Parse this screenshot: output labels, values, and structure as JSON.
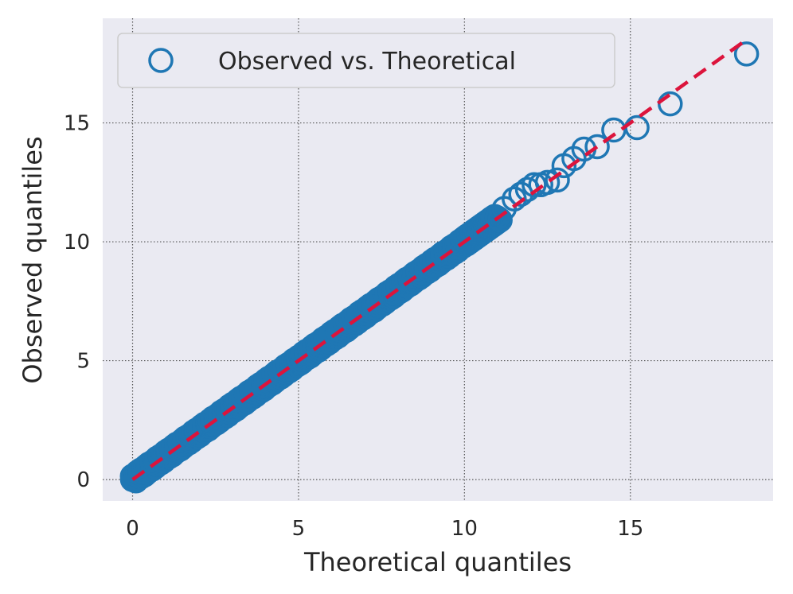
{
  "chart_data": {
    "type": "scatter",
    "xlabel": "Theoretical quantiles",
    "ylabel": "Observed quantiles",
    "xlim": [
      -0.9,
      19.3
    ],
    "ylim": [
      -0.9,
      19.4
    ],
    "xticks": [
      0,
      5,
      10,
      15
    ],
    "yticks": [
      0,
      5,
      10,
      15
    ],
    "grid": true,
    "grid_style": "dotted",
    "background_color": "#eaeaf2",
    "legend": {
      "location": "top-left",
      "entries": [
        "Observed vs. Theoretical"
      ]
    },
    "series": [
      {
        "name": "Observed vs. Theoretical",
        "kind": "scatter",
        "marker": "hollow-circle",
        "color": "#1f77b4",
        "dense_segments": [
          {
            "from": [
              0,
              0
            ],
            "to": [
              5,
              5
            ]
          },
          {
            "from": [
              5,
              5
            ],
            "to": [
              10,
              10
            ]
          },
          {
            "from": [
              10,
              10
            ],
            "to": [
              11,
              11
            ]
          }
        ],
        "points": [
          [
            11.2,
            11.4
          ],
          [
            11.5,
            11.8
          ],
          [
            11.7,
            12.0
          ],
          [
            11.9,
            12.2
          ],
          [
            12.1,
            12.4
          ],
          [
            12.3,
            12.4
          ],
          [
            12.5,
            12.5
          ],
          [
            12.8,
            12.6
          ],
          [
            13.0,
            13.2
          ],
          [
            13.3,
            13.5
          ],
          [
            13.6,
            13.9
          ],
          [
            14.0,
            14.0
          ],
          [
            14.5,
            14.7
          ],
          [
            15.2,
            14.8
          ],
          [
            16.2,
            15.8
          ],
          [
            18.5,
            17.9
          ]
        ]
      },
      {
        "name": "",
        "kind": "line",
        "style": "dashed",
        "color": "#dc143c",
        "x": [
          0,
          18.5
        ],
        "y": [
          0,
          18.5
        ]
      }
    ]
  }
}
